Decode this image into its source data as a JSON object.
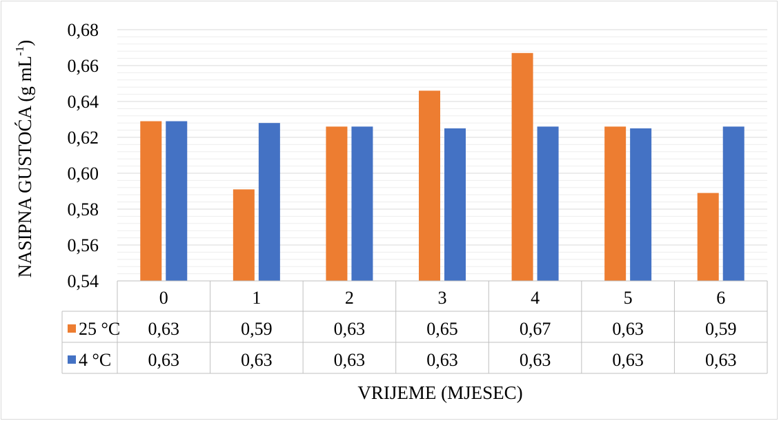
{
  "chart_data": {
    "type": "bar",
    "categories": [
      "0",
      "1",
      "2",
      "3",
      "4",
      "5",
      "6"
    ],
    "series": [
      {
        "name": "25 °C",
        "color": "#ed7d31",
        "values": [
          0.629,
          0.591,
          0.626,
          0.646,
          0.667,
          0.626,
          0.589
        ],
        "table_labels": [
          "0,63",
          "0,59",
          "0,63",
          "0,65",
          "0,67",
          "0,63",
          "0,59"
        ]
      },
      {
        "name": "4 °C",
        "color": "#4472c4",
        "values": [
          0.629,
          0.628,
          0.626,
          0.625,
          0.626,
          0.625,
          0.626
        ],
        "table_labels": [
          "0,63",
          "0,63",
          "0,63",
          "0,63",
          "0,63",
          "0,63",
          "0,63"
        ]
      }
    ],
    "xlabel": "VRIJEME (MJESEC)",
    "ylabel_main": "NASIPNA GUSTOĆA (g mL",
    "ylabel_sup": "-1",
    "ylabel_close": ")",
    "ylim": [
      0.54,
      0.68
    ],
    "yticks": [
      0.54,
      0.56,
      0.58,
      0.6,
      0.62,
      0.64,
      0.66,
      0.68
    ],
    "ytick_labels": [
      "0,54",
      "0,56",
      "0,58",
      "0,60",
      "0,62",
      "0,64",
      "0,66",
      "0,68"
    ],
    "grid": true,
    "legend": "data-table"
  }
}
